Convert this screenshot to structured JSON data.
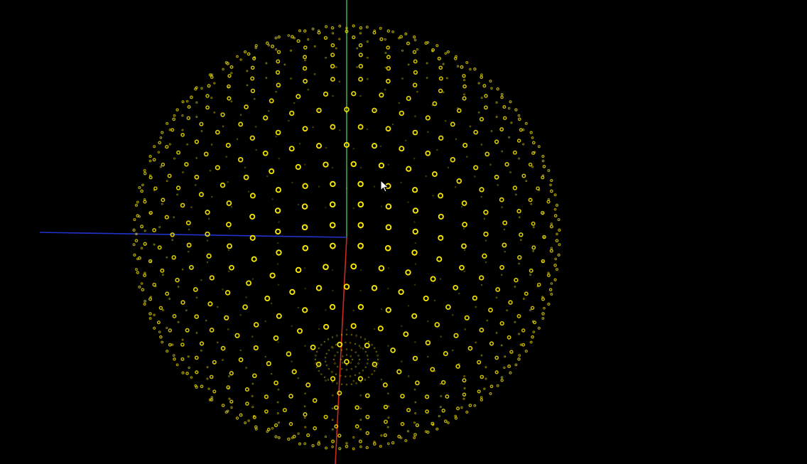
{
  "viewer": {
    "background_color": "#000000",
    "point_color": "#ffee00",
    "axes": {
      "x_axis_color": "#cc2a1e",
      "y_axis_color": "#3ea23e",
      "z_axis_color": "#2233cc"
    },
    "cursor_icon": "mouse-pointer-icon"
  }
}
